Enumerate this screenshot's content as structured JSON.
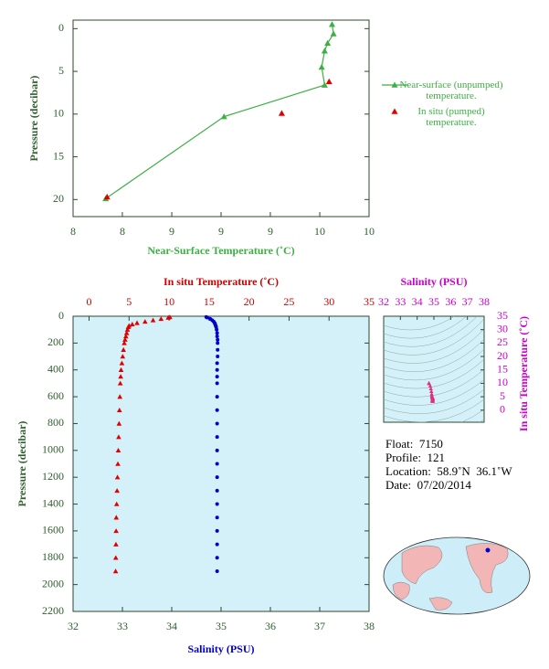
{
  "chart_data": [
    {
      "type": "line",
      "xlabel": "Near-Surface Temperature (˚C)",
      "ylabel": "Pressure (decibar)",
      "xlim": [
        8,
        10
      ],
      "xticks": [
        8,
        {
          "value": 8.333,
          "label": "8"
        },
        {
          "value": 8.667,
          "label": "9"
        },
        9,
        {
          "value": 9.333,
          "label": "9"
        },
        {
          "value": 9.667,
          "label": "10"
        },
        10
      ],
      "ylim": [
        22,
        -1
      ],
      "yticks": [
        0,
        5,
        10,
        15,
        20
      ],
      "series": [
        {
          "name": "Near-surface (unpumped) temperature.",
          "color": "#3cb043",
          "line": true,
          "x": [
            9.75,
            9.76,
            9.72,
            9.7,
            9.68,
            9.7,
            9.02,
            8.22
          ],
          "y": [
            -0.5,
            0.6,
            1.7,
            2.6,
            4.5,
            6.6,
            10.3,
            19.9
          ]
        },
        {
          "name": "In situ (pumped) temperature.",
          "color": "#e00000",
          "line": false,
          "x": [
            9.73,
            9.41,
            8.23
          ],
          "y": [
            6.2,
            9.9,
            19.7
          ]
        }
      ]
    },
    {
      "type": "profile",
      "ylabel": "Pressure (decibar)",
      "ylim": [
        2200,
        0
      ],
      "yticks": [
        0,
        200,
        400,
        600,
        800,
        1000,
        1200,
        1400,
        1600,
        1800,
        2000,
        2200
      ],
      "xlabel": "Salinity (PSU)",
      "xlim": [
        32,
        38
      ],
      "xticks": [
        32,
        33,
        34,
        35,
        36,
        37,
        38
      ],
      "x2label": "In situ Temperature (˚C)",
      "x2lim": [
        -2,
        35
      ],
      "x2ticks": [
        0,
        5,
        10,
        15,
        20,
        25,
        30,
        35
      ],
      "background": "#d4f0f8",
      "pressure": [
        6,
        10,
        20,
        30,
        40,
        50,
        60,
        70,
        80,
        100,
        125,
        150,
        175,
        200,
        250,
        300,
        350,
        400,
        450,
        500,
        600,
        700,
        800,
        900,
        1000,
        1100,
        1200,
        1300,
        1400,
        1500,
        1600,
        1700,
        1800,
        1900
      ],
      "series": [
        {
          "axis": "x2",
          "color": "#e00000",
          "marker": "triangle",
          "values": [
            10.1,
            9.9,
            9.0,
            8.0,
            7.0,
            6.0,
            5.4,
            5.0,
            4.9,
            4.8,
            4.7,
            4.6,
            4.5,
            4.4,
            4.3,
            4.2,
            4.1,
            4.0,
            3.95,
            3.9,
            3.85,
            3.8,
            3.75,
            3.7,
            3.65,
            3.6,
            3.55,
            3.5,
            3.45,
            3.4,
            3.38,
            3.36,
            3.34,
            3.32
          ]
        },
        {
          "axis": "x",
          "color": "#0000cc",
          "marker": "dot",
          "values": [
            34.7,
            34.72,
            34.78,
            34.82,
            34.85,
            34.87,
            34.88,
            34.89,
            34.9,
            34.91,
            34.92,
            34.92,
            34.93,
            34.93,
            34.93,
            34.93,
            34.92,
            34.92,
            34.92,
            34.92,
            34.92,
            34.92,
            34.92,
            34.92,
            34.92,
            34.92,
            34.92,
            34.92,
            34.92,
            34.92,
            34.92,
            34.92,
            34.92,
            34.92
          ]
        }
      ]
    },
    {
      "type": "ts",
      "xlabel": "Salinity (PSU)",
      "xlim": [
        32,
        38
      ],
      "xticks": [
        32,
        33,
        34,
        35,
        36,
        37,
        38
      ],
      "ylabel": "In situ Temperature (˚C)",
      "ylim": [
        -4.5,
        35
      ],
      "yticks": [
        0,
        5,
        10,
        15,
        20,
        25,
        30,
        35
      ],
      "color": "#e0307a",
      "background": "#d4f0f8"
    }
  ],
  "info": {
    "lines": [
      "Float:  7150",
      "Profile:  121",
      "Location:  58.9˚N  36.1˚W",
      "Date:  07/20/2014"
    ]
  }
}
